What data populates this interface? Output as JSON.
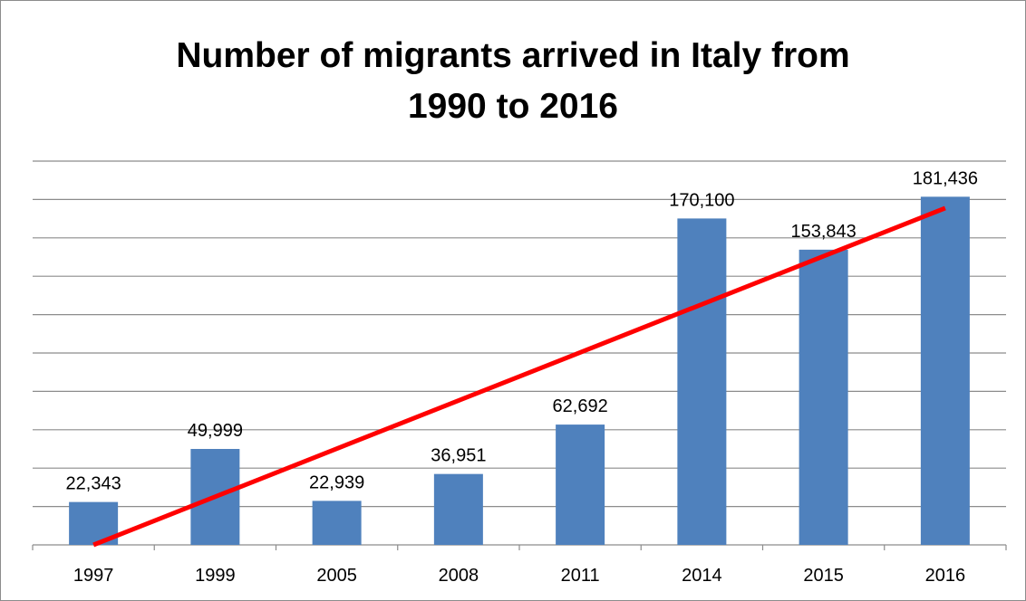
{
  "chart_data": {
    "type": "bar",
    "title_lines": [
      "Number of migrants arrived in Italy from",
      "1990 to 2016"
    ],
    "categories": [
      "1997",
      "1999",
      "2005",
      "2008",
      "2011",
      "2014",
      "2015",
      "2016"
    ],
    "values": [
      22343,
      49999,
      22939,
      36951,
      62692,
      170100,
      153843,
      181436
    ],
    "data_labels": [
      "22,343",
      "49,999",
      "22,939",
      "36,951",
      "62,692",
      "170,100",
      "153,843",
      "181,436"
    ],
    "ylim": [
      0,
      200000
    ],
    "y_gridline_step": 20000,
    "grid": true,
    "y_tick_labels_shown": false,
    "bar_color": "#4f81bd",
    "trendline": {
      "type": "linear",
      "color": "#ff0000",
      "start_value": 0,
      "end_value": 175500
    }
  }
}
